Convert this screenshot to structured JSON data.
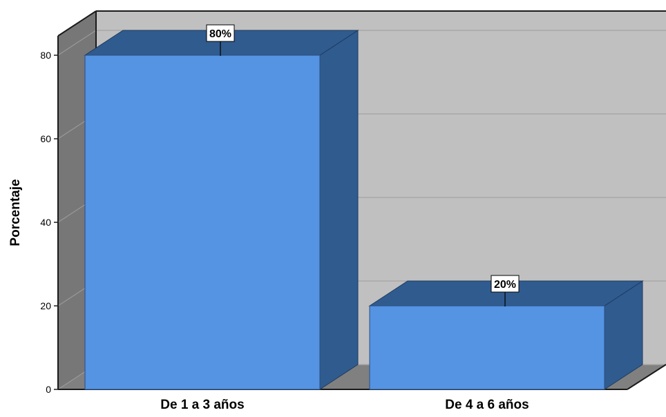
{
  "chart_data": {
    "type": "bar",
    "style": "3d",
    "categories": [
      "De 1 a 3 años",
      "De 4 a 6 años"
    ],
    "values": [
      80,
      20
    ],
    "data_labels": [
      "80%",
      "20%"
    ],
    "ylabel": "Porcentaje",
    "xlabel": "",
    "ylim": [
      0,
      80
    ],
    "yticks": [
      0,
      20,
      40,
      60,
      80
    ],
    "grid": true,
    "colors": {
      "bar_front": "#5593e3",
      "bar_side": "#305b8f",
      "back_wall": "#c0c0c0",
      "side_wall": "#777777",
      "floor": "#808080",
      "gridline": "#a8a8a8"
    }
  }
}
